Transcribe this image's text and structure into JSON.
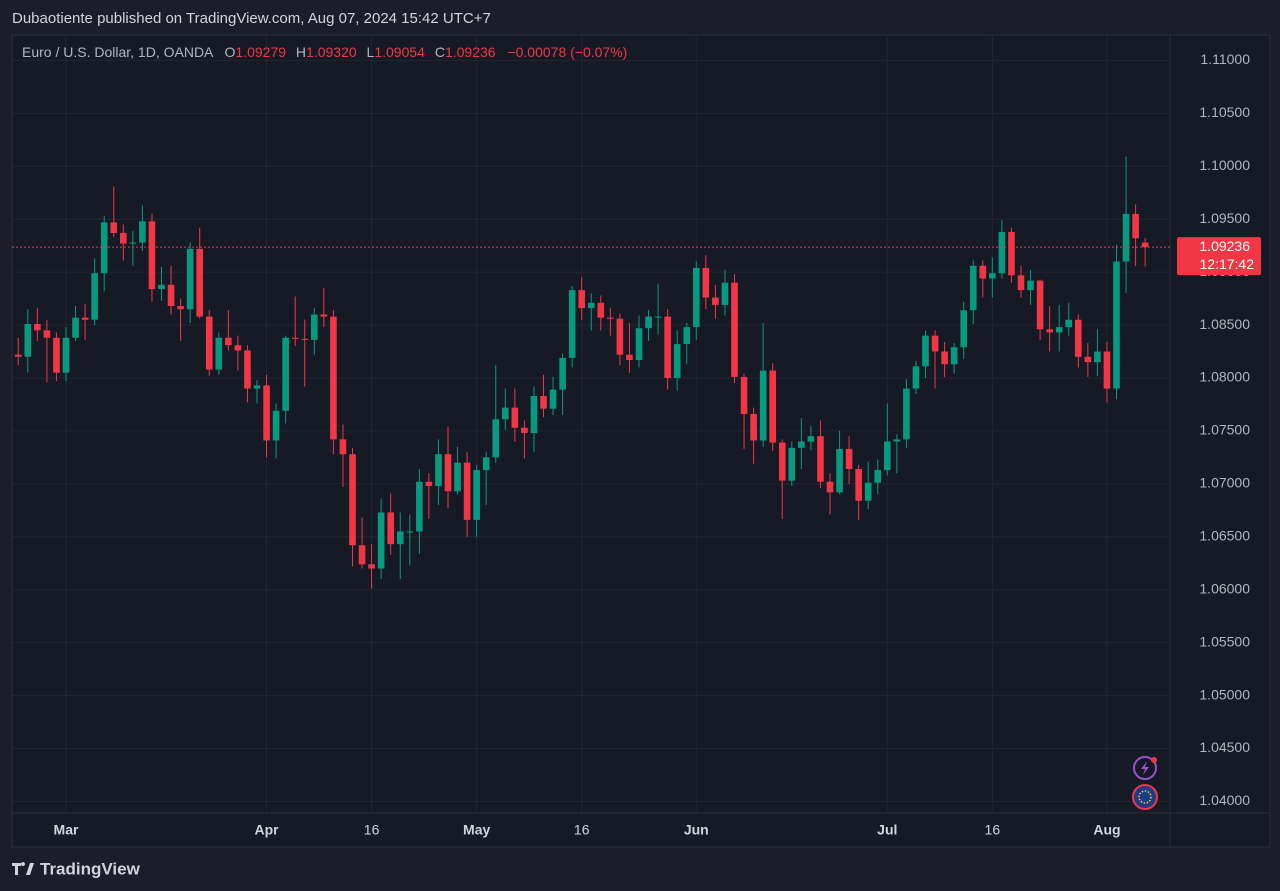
{
  "header": {
    "publisher": "Dubaotiente published on TradingView.com, Aug 07, 2024 15:42 UTC+7",
    "symbol": "Euro / U.S. Dollar, 1D, OANDA",
    "ohlc": [
      {
        "letter": "O",
        "value": "1.09279"
      },
      {
        "letter": "H",
        "value": "1.09320"
      },
      {
        "letter": "L",
        "value": "1.09054"
      },
      {
        "letter": "C",
        "value": "1.09236"
      }
    ],
    "change": "−0.00078 (−0.07%)",
    "countdown": "12:17:42"
  },
  "chart_data": {
    "type": "candlestick",
    "categories": [
      null,
      null,
      null,
      null,
      null,
      "Mar",
      null,
      null,
      null,
      null,
      null,
      null,
      null,
      null,
      null,
      null,
      null,
      null,
      null,
      null,
      null,
      null,
      null,
      null,
      null,
      null,
      "Apr",
      null,
      null,
      null,
      null,
      null,
      null,
      null,
      null,
      null,
      null,
      "16",
      null,
      null,
      null,
      null,
      null,
      null,
      null,
      null,
      null,
      null,
      "May",
      null,
      null,
      null,
      null,
      null,
      null,
      null,
      null,
      null,
      null,
      "16",
      null,
      null,
      null,
      null,
      null,
      null,
      null,
      null,
      null,
      null,
      null,
      "Jun",
      null,
      null,
      null,
      null,
      null,
      null,
      null,
      null,
      null,
      null,
      null,
      null,
      null,
      null,
      null,
      null,
      null,
      null,
      null,
      "Jul",
      null,
      null,
      null,
      null,
      null,
      null,
      null,
      null,
      null,
      null,
      "16",
      null,
      null,
      null,
      null,
      null,
      null,
      null,
      null,
      null,
      null,
      null,
      "Aug",
      null,
      null,
      null,
      null
    ],
    "open": [
      1.0822,
      1.082,
      1.0851,
      1.0845,
      1.0838,
      1.0805,
      1.0838,
      1.0857,
      1.0855,
      1.0899,
      1.0947,
      1.0937,
      1.0927,
      1.0928,
      1.0948,
      1.0884,
      1.0888,
      1.0868,
      1.0865,
      1.0922,
      1.0858,
      1.0808,
      1.0838,
      1.0831,
      1.0826,
      1.079,
      1.0793,
      1.0741,
      1.0769,
      1.0838,
      1.0837,
      1.0836,
      1.086,
      1.0858,
      1.0742,
      1.0728,
      1.0642,
      1.0624,
      1.062,
      1.0673,
      1.0643,
      1.0655,
      1.0655,
      1.0702,
      1.0698,
      1.0728,
      1.0693,
      1.072,
      1.0666,
      1.0713,
      1.0725,
      1.0761,
      1.0772,
      1.0753,
      1.0748,
      1.0783,
      1.0771,
      1.0789,
      1.0819,
      1.0883,
      1.0866,
      1.0871,
      1.0857,
      1.0856,
      1.0822,
      1.0817,
      1.0847,
      1.0858,
      1.0858,
      1.08,
      1.0832,
      1.0848,
      1.0904,
      1.0876,
      1.0869,
      1.089,
      1.0801,
      1.0766,
      1.0741,
      1.0807,
      1.0739,
      1.0703,
      1.0734,
      1.074,
      1.0745,
      1.0702,
      1.0692,
      1.0733,
      1.0714,
      1.0684,
      1.0701,
      1.0713,
      1.074,
      1.0742,
      1.079,
      1.0811,
      1.084,
      1.0825,
      1.0813,
      1.0829,
      1.0864,
      1.0906,
      1.0894,
      1.0899,
      1.0938,
      1.0897,
      1.0883,
      1.0892,
      1.0846,
      1.0843,
      1.0848,
      1.0855,
      1.082,
      1.0815,
      1.0825,
      1.079,
      1.091,
      1.0955,
      1.09279
    ],
    "high": [
      1.0838,
      1.0865,
      1.0866,
      1.0855,
      1.0843,
      1.0848,
      1.0868,
      1.087,
      1.0913,
      1.0953,
      1.0981,
      1.0945,
      1.0939,
      1.0963,
      1.0955,
      1.0905,
      1.0906,
      1.0875,
      1.0928,
      1.0942,
      1.0864,
      1.0843,
      1.0864,
      1.084,
      1.0831,
      1.0798,
      1.0803,
      1.0776,
      1.084,
      1.0877,
      1.0855,
      1.0866,
      1.0885,
      1.0864,
      1.0756,
      1.0734,
      1.0668,
      1.0643,
      1.0686,
      1.0691,
      1.0673,
      1.0671,
      1.0714,
      1.071,
      1.0742,
      1.0754,
      1.0735,
      1.073,
      1.0718,
      1.073,
      1.0812,
      1.079,
      1.079,
      1.076,
      1.0792,
      1.0803,
      1.0801,
      1.0823,
      1.0887,
      1.0895,
      1.088,
      1.0878,
      1.0866,
      1.0861,
      1.0852,
      1.0859,
      1.0864,
      1.0889,
      1.0865,
      1.0845,
      1.0852,
      1.091,
      1.0916,
      1.0888,
      1.0902,
      1.0898,
      1.0804,
      1.0772,
      1.0852,
      1.0814,
      1.0742,
      1.074,
      1.0762,
      1.0755,
      1.076,
      1.071,
      1.075,
      1.0745,
      1.0718,
      1.0721,
      1.0723,
      1.0776,
      1.0747,
      1.0799,
      1.0816,
      1.0845,
      1.0845,
      1.0834,
      1.0833,
      1.0872,
      1.0911,
      1.0911,
      1.0914,
      1.0949,
      1.0942,
      1.0906,
      1.0902,
      1.0893,
      1.0868,
      1.0869,
      1.0871,
      1.086,
      1.0833,
      1.0846,
      1.0834,
      1.0926,
      1.1009,
      1.0964,
      1.0932
    ],
    "low": [
      1.0812,
      1.0805,
      1.0835,
      1.0796,
      1.0797,
      1.0797,
      1.0835,
      1.0836,
      1.085,
      1.0882,
      1.0933,
      1.0911,
      1.0906,
      1.092,
      1.0872,
      1.0873,
      1.086,
      1.0835,
      1.0852,
      1.0856,
      1.0802,
      1.0803,
      1.0826,
      1.0807,
      1.0777,
      1.0776,
      1.0725,
      1.0724,
      1.0757,
      1.083,
      1.0792,
      1.0822,
      1.0848,
      1.0728,
      1.0697,
      1.0622,
      1.062,
      1.0601,
      1.061,
      1.0633,
      1.061,
      1.0623,
      1.0634,
      1.0667,
      1.068,
      1.0677,
      1.069,
      1.065,
      1.065,
      1.068,
      1.072,
      1.0751,
      1.074,
      1.0724,
      1.073,
      1.0763,
      1.0765,
      1.0765,
      1.081,
      1.0855,
      1.0845,
      1.0845,
      1.084,
      1.0812,
      1.0805,
      1.081,
      1.0835,
      1.0841,
      1.0789,
      1.0788,
      1.0813,
      1.0836,
      1.0865,
      1.0856,
      1.0859,
      1.0795,
      1.0733,
      1.0719,
      1.0735,
      1.0731,
      1.0667,
      1.0698,
      1.0714,
      1.0732,
      1.0696,
      1.0671,
      1.069,
      1.07,
      1.0666,
      1.0676,
      1.069,
      1.0708,
      1.071,
      1.0734,
      1.0785,
      1.08,
      1.079,
      1.0801,
      1.0804,
      1.0818,
      1.0851,
      1.0876,
      1.0876,
      1.0894,
      1.089,
      1.0876,
      1.0869,
      1.0836,
      1.0825,
      1.0825,
      1.084,
      1.081,
      1.0801,
      1.0802,
      1.0777,
      1.078,
      1.088,
      1.0906,
      1.09054
    ],
    "close": [
      1.082,
      1.0851,
      1.0845,
      1.0838,
      1.0805,
      1.0838,
      1.0857,
      1.0855,
      1.0899,
      1.0947,
      1.0937,
      1.0927,
      1.0928,
      1.0948,
      1.0884,
      1.0888,
      1.0868,
      1.0865,
      1.0922,
      1.0858,
      1.0808,
      1.0838,
      1.0831,
      1.0826,
      1.079,
      1.0793,
      1.0741,
      1.0769,
      1.0838,
      1.0837,
      1.0836,
      1.086,
      1.0858,
      1.0742,
      1.0728,
      1.0642,
      1.0624,
      1.062,
      1.0673,
      1.0643,
      1.0655,
      1.0655,
      1.0702,
      1.0698,
      1.0728,
      1.0693,
      1.072,
      1.0666,
      1.0713,
      1.0725,
      1.0761,
      1.0772,
      1.0753,
      1.0748,
      1.0783,
      1.0771,
      1.0789,
      1.0819,
      1.0883,
      1.0866,
      1.0871,
      1.0857,
      1.0856,
      1.0822,
      1.0817,
      1.0847,
      1.0858,
      1.0858,
      1.08,
      1.0832,
      1.0848,
      1.0904,
      1.0876,
      1.0869,
      1.089,
      1.0801,
      1.0766,
      1.0741,
      1.0807,
      1.0739,
      1.0703,
      1.0734,
      1.074,
      1.0745,
      1.0702,
      1.0692,
      1.0733,
      1.0714,
      1.0684,
      1.0701,
      1.0713,
      1.074,
      1.0742,
      1.079,
      1.0811,
      1.084,
      1.0825,
      1.0813,
      1.0829,
      1.0864,
      1.0906,
      1.0894,
      1.0899,
      1.0938,
      1.0897,
      1.0883,
      1.0892,
      1.0846,
      1.0843,
      1.0848,
      1.0855,
      1.082,
      1.0815,
      1.0825,
      1.079,
      1.091,
      1.0955,
      1.0932,
      1.09236
    ],
    "up_color": "#089981",
    "down_color": "#f23645",
    "ylim": [
      1.039,
      1.1124
    ],
    "yticks": [
      {
        "value": 1.04,
        "label": "1.04000"
      },
      {
        "value": 1.045,
        "label": "1.04500"
      },
      {
        "value": 1.05,
        "label": "1.05000"
      },
      {
        "value": 1.055,
        "label": "1.05500"
      },
      {
        "value": 1.06,
        "label": "1.06000"
      },
      {
        "value": 1.065,
        "label": "1.06500"
      },
      {
        "value": 1.07,
        "label": "1.07000"
      },
      {
        "value": 1.075,
        "label": "1.07500"
      },
      {
        "value": 1.08,
        "label": "1.08000"
      },
      {
        "value": 1.085,
        "label": "1.08500"
      },
      {
        "value": 1.09,
        "label": "1.09000"
      },
      {
        "value": 1.095,
        "label": "1.09500"
      },
      {
        "value": 1.1,
        "label": "1.10000"
      },
      {
        "value": 1.105,
        "label": "1.10500"
      },
      {
        "value": 1.11,
        "label": "1.11000"
      }
    ],
    "grid": true
  },
  "footer": {
    "brand": "TradingView"
  }
}
